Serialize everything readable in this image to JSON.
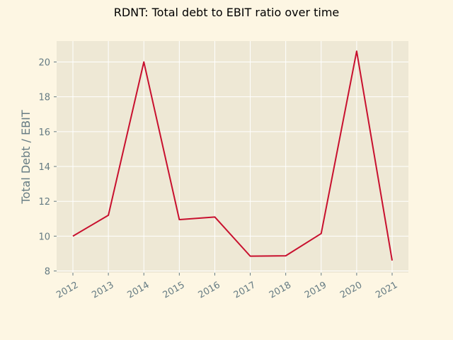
{
  "chart_data": {
    "type": "line",
    "title": "RDNT: Total debt to EBIT ratio over time",
    "xlabel": "",
    "ylabel": "Total Debt / EBIT",
    "x": [
      "2012",
      "2013",
      "2014",
      "2015",
      "2016",
      "2017",
      "2018",
      "2019",
      "2020",
      "2021"
    ],
    "series": [
      {
        "values": [
          10.0,
          11.2,
          20.0,
          10.95,
          11.1,
          8.85,
          8.87,
          10.15,
          20.62,
          8.6
        ]
      }
    ],
    "ylim": [
      7.9,
      21.2
    ],
    "yticks": [
      8,
      10,
      12,
      14,
      16,
      18,
      20
    ],
    "grid": true,
    "colors": {
      "background": "#fdf6e3",
      "plot_background": "#eee8d5",
      "grid": "#ffffff",
      "line": "#c8102e",
      "tick_text": "#657b83",
      "axis_label": "#657b83"
    }
  }
}
